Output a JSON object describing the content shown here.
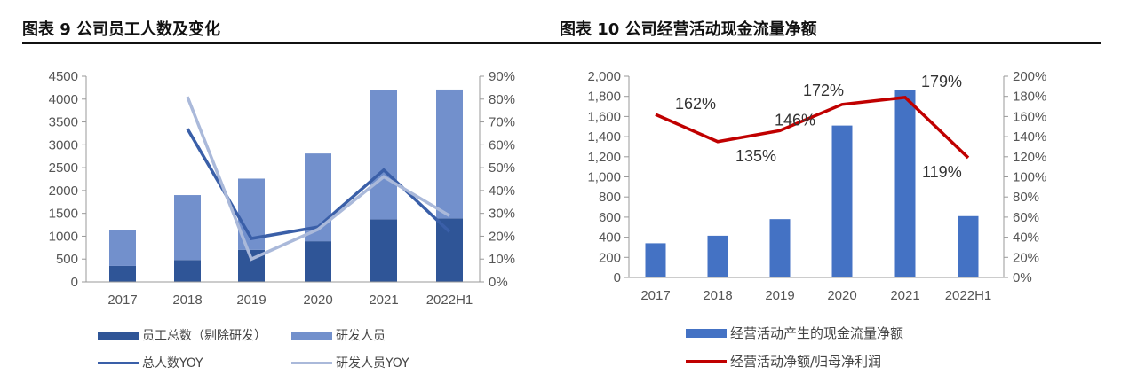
{
  "left": {
    "title": "图表 9 公司员工人数及变化",
    "legend": [
      "员工总数（剔除研发）",
      "研发人员",
      "总人数YOY",
      "研发人员YOY"
    ]
  },
  "right": {
    "title": "图表 10 公司经营活动现金流量净额",
    "legend": [
      "经营活动产生的现金流量净额",
      "经营活动净额/归母净利润"
    ]
  },
  "chart_data": [
    {
      "type": "bar",
      "stacked": true,
      "categories": [
        "2017",
        "2018",
        "2019",
        "2020",
        "2021",
        "2022H1"
      ],
      "ylim": [
        0,
        4500
      ],
      "yticks": [
        "0",
        "500",
        "1000",
        "1500",
        "2000",
        "2500",
        "3000",
        "3500",
        "4000",
        "4500"
      ],
      "y2lim": [
        0,
        90
      ],
      "y2ticks": [
        "0%",
        "10%",
        "20%",
        "30%",
        "40%",
        "50%",
        "60%",
        "70%",
        "80%",
        "90%"
      ],
      "legend_position": "bottom",
      "grid": false,
      "series": [
        {
          "name": "员工总数（剔除研发）",
          "type": "bar",
          "axis": "left",
          "color": "#2f5597",
          "values": [
            350,
            480,
            700,
            890,
            1370,
            1390
          ]
        },
        {
          "name": "研发人员",
          "type": "bar",
          "axis": "left",
          "color": "#7290cc",
          "values": [
            790,
            1420,
            1560,
            1920,
            2820,
            2820
          ]
        },
        {
          "name": "总人数YOY",
          "type": "line",
          "axis": "right",
          "color": "#3a5fa8",
          "values": [
            null,
            67,
            19,
            24,
            49,
            22
          ]
        },
        {
          "name": "研发人员YOY",
          "type": "line",
          "axis": "right",
          "color": "#aab9da",
          "values": [
            null,
            81,
            10,
            23,
            46,
            29
          ]
        }
      ]
    },
    {
      "type": "bar",
      "categories": [
        "2017",
        "2018",
        "2019",
        "2020",
        "2021",
        "2022H1"
      ],
      "ylim": [
        0,
        2000
      ],
      "yticks": [
        "0",
        "200",
        "400",
        "600",
        "800",
        "1,000",
        "1,200",
        "1,400",
        "1,600",
        "1,800",
        "2,000"
      ],
      "y2lim": [
        0,
        200
      ],
      "y2ticks": [
        "0%",
        "20%",
        "40%",
        "60%",
        "80%",
        "100%",
        "120%",
        "140%",
        "160%",
        "180%",
        "200%"
      ],
      "legend_position": "bottom",
      "grid": false,
      "series": [
        {
          "name": "经营活动产生的现金流量净额",
          "type": "bar",
          "axis": "left",
          "color": "#4472c4",
          "values": [
            340,
            415,
            580,
            1510,
            1860,
            610
          ]
        },
        {
          "name": "经营活动净额/归母净利润",
          "type": "line",
          "axis": "right",
          "color": "#c00000",
          "values": [
            162,
            135,
            146,
            172,
            179,
            119
          ],
          "data_labels": [
            "162%",
            "135%",
            "146%",
            "172%",
            "179%",
            "119%"
          ]
        }
      ]
    }
  ]
}
